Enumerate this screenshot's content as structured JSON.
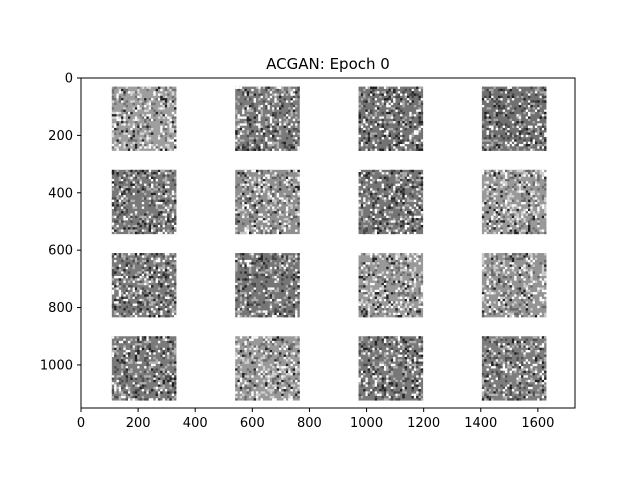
{
  "chart_data": {
    "type": "heatmap",
    "title": "ACGAN: Epoch 0",
    "xlabel": "",
    "ylabel": "",
    "xlim": [
      0,
      1730
    ],
    "ylim": [
      1150,
      0
    ],
    "x_ticks": [
      0,
      200,
      400,
      600,
      800,
      1000,
      1200,
      1400,
      1600
    ],
    "y_ticks": [
      0,
      200,
      400,
      600,
      800,
      1000
    ],
    "grid": false,
    "legend": "none",
    "colormap": "gray",
    "grid_layout": {
      "rows": 4,
      "cols": 4
    },
    "panels": [
      {
        "x_extent": [
          108,
          334
        ],
        "y_extent": [
          30,
          254
        ],
        "tone": 0.62
      },
      {
        "x_extent": [
          540,
          766
        ],
        "y_extent": [
          30,
          254
        ],
        "tone": 0.48
      },
      {
        "x_extent": [
          972,
          1198
        ],
        "y_extent": [
          30,
          254
        ],
        "tone": 0.45
      },
      {
        "x_extent": [
          1404,
          1630
        ],
        "y_extent": [
          30,
          254
        ],
        "tone": 0.44
      },
      {
        "x_extent": [
          108,
          334
        ],
        "y_extent": [
          320,
          544
        ],
        "tone": 0.47
      },
      {
        "x_extent": [
          540,
          766
        ],
        "y_extent": [
          320,
          544
        ],
        "tone": 0.56
      },
      {
        "x_extent": [
          972,
          1198
        ],
        "y_extent": [
          320,
          544
        ],
        "tone": 0.46
      },
      {
        "x_extent": [
          1404,
          1630
        ],
        "y_extent": [
          320,
          544
        ],
        "tone": 0.6
      },
      {
        "x_extent": [
          108,
          334
        ],
        "y_extent": [
          610,
          834
        ],
        "tone": 0.48
      },
      {
        "x_extent": [
          540,
          766
        ],
        "y_extent": [
          610,
          834
        ],
        "tone": 0.46
      },
      {
        "x_extent": [
          972,
          1198
        ],
        "y_extent": [
          610,
          834
        ],
        "tone": 0.6
      },
      {
        "x_extent": [
          1404,
          1630
        ],
        "y_extent": [
          610,
          834
        ],
        "tone": 0.58
      },
      {
        "x_extent": [
          108,
          334
        ],
        "y_extent": [
          900,
          1124
        ],
        "tone": 0.48
      },
      {
        "x_extent": [
          540,
          766
        ],
        "y_extent": [
          900,
          1124
        ],
        "tone": 0.6
      },
      {
        "x_extent": [
          972,
          1198
        ],
        "y_extent": [
          900,
          1124
        ],
        "tone": 0.47
      },
      {
        "x_extent": [
          1404,
          1630
        ],
        "y_extent": [
          900,
          1124
        ],
        "tone": 0.49
      }
    ]
  }
}
